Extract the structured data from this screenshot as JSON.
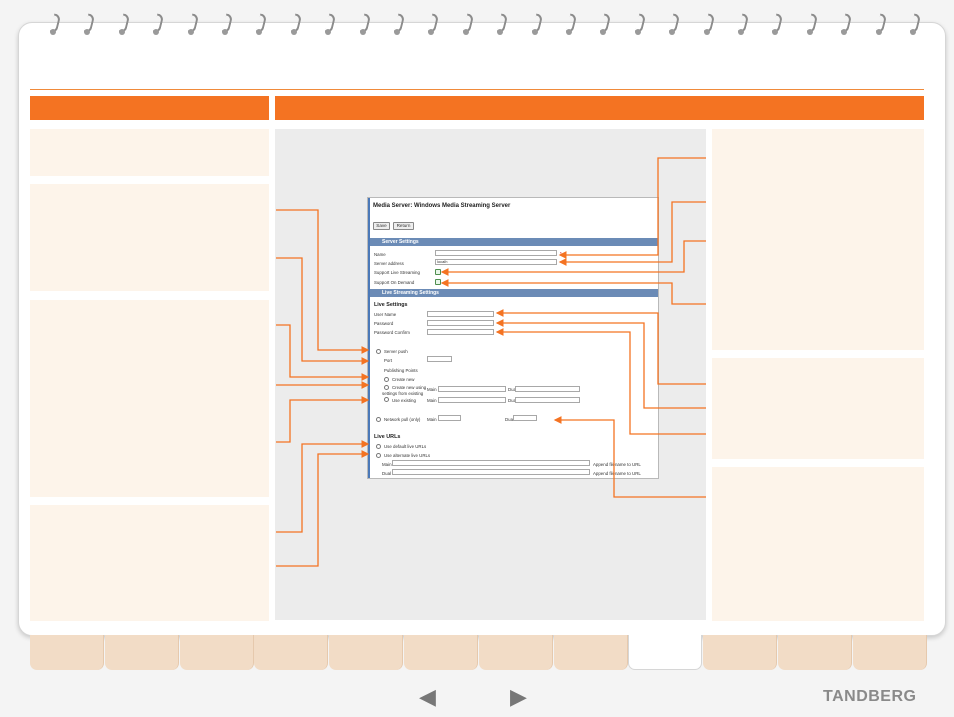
{
  "window": {
    "title": "Media Server: Windows Media Streaming Server",
    "save_label": "Save",
    "return_label": "Return",
    "server_settings_header": "Server Settings",
    "name_label": "Name",
    "server_address_label": "Server address",
    "server_address_value": "localh",
    "support_live_label": "Support Live Streaming",
    "support_on_demand_label": "Support On Demand",
    "live_streaming_header": "Live Streaming Settings",
    "live_settings_title": "Live Settings",
    "user_name_label": "User Name",
    "password_label": "Password",
    "password_confirm_label": "Password Confirm",
    "server_push_label": "Server push",
    "port_label": "Port",
    "publishing_points_label": "Publishing Points",
    "create_new_label": "Create new",
    "create_new_using_label": "Create new using",
    "settings_from_existing_label": "settings from existing",
    "use_existing_label": "Use existing",
    "main_label": "Main",
    "dual_label": "Dual",
    "network_pull_label": "Network pull (only)",
    "live_urls_title": "Live URLs",
    "use_default_urls_label": "Use default live URLs",
    "use_alternate_urls_label": "Use alternate live URLs",
    "append_filename_label": "Append filename to URL"
  },
  "footer": {
    "prev_arrow": "◀",
    "next_arrow": "▶",
    "brand": "TANDBERG"
  },
  "colors": {
    "accent": "#f47322",
    "panel": "#fdf4ea",
    "tab": "#f2dcc6",
    "window_header": "#6b8bb6"
  }
}
